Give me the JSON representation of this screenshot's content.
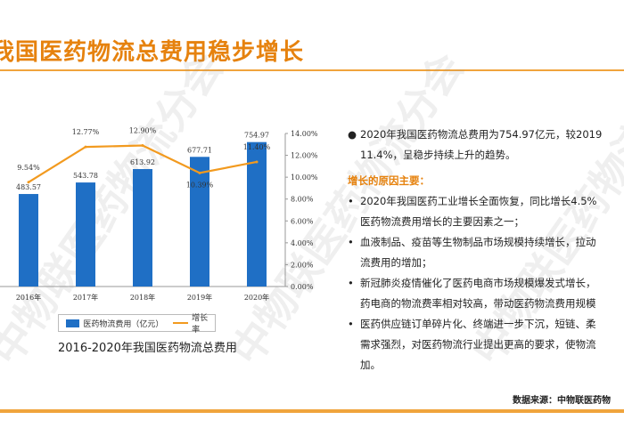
{
  "title": "我国医药物流总费用稳步增长",
  "chart_data": {
    "type": "bar",
    "categories": [
      "2016年",
      "2017年",
      "2018年",
      "2019年",
      "2020年"
    ],
    "series": [
      {
        "name": "医药物流费用（亿元）",
        "type": "bar",
        "axis": "left",
        "values": [
          483.57,
          543.78,
          613.92,
          677.71,
          754.97
        ]
      },
      {
        "name": "增长率",
        "type": "line",
        "axis": "right",
        "values": [
          9.54,
          12.77,
          12.9,
          10.39,
          11.4
        ]
      }
    ],
    "bar_labels": [
      "483.57",
      "543.78",
      "613.92",
      "677.71",
      "754.97"
    ],
    "line_labels": [
      "9.54%",
      "12.77%",
      "12.90%",
      "10.39%",
      "11.40%"
    ],
    "y2_ticks": [
      "0.00%",
      "2.00%",
      "4.00%",
      "6.00%",
      "8.00%",
      "10.00%",
      "12.00%",
      "14.00%"
    ],
    "ylim": [
      0,
      800
    ],
    "y2lim": [
      0,
      14
    ],
    "legend": "bottom",
    "colors": {
      "bar": "#1f6fc5",
      "line": "#f29a1f"
    }
  },
  "legend": {
    "bar_label": "医药物流费用（亿元）",
    "line_label": "增长率"
  },
  "caption": "2016-2020年我国医药物流总费用",
  "summary": "2020年我国医药物流总费用为754.97亿元，较2019年增长11.4%，呈稳步持续上升的趋势。",
  "summary_lines": [
    "2020年我国医药物流总费用为754.97亿元，较2019",
    "11.4%，呈稳步持续上升的趋势。"
  ],
  "reasons_heading": "增长的原因主要：",
  "reasons": [
    [
      "2020年我国医药工业增长全面恢复，同比增长4.5%",
      "医药物流费用增长的主要因素之一；"
    ],
    [
      "血液制品、疫苗等生物制品市场规模持续增长，拉动",
      "流费用的增加；"
    ],
    [
      "新冠肺炎疫情催化了医药电商市场规模爆发式增长，",
      "药电商的物流费率相对较高，带动医药物流费用规模"
    ],
    [
      "医药供应链订单碎片化、终端进一步下沉，短链、柔",
      "需求强烈，对医药物流行业提出更高的要求，使物流",
      "加。"
    ]
  ],
  "source": "数据来源：中物联医药物",
  "watermark": "中物联医药物流分会"
}
